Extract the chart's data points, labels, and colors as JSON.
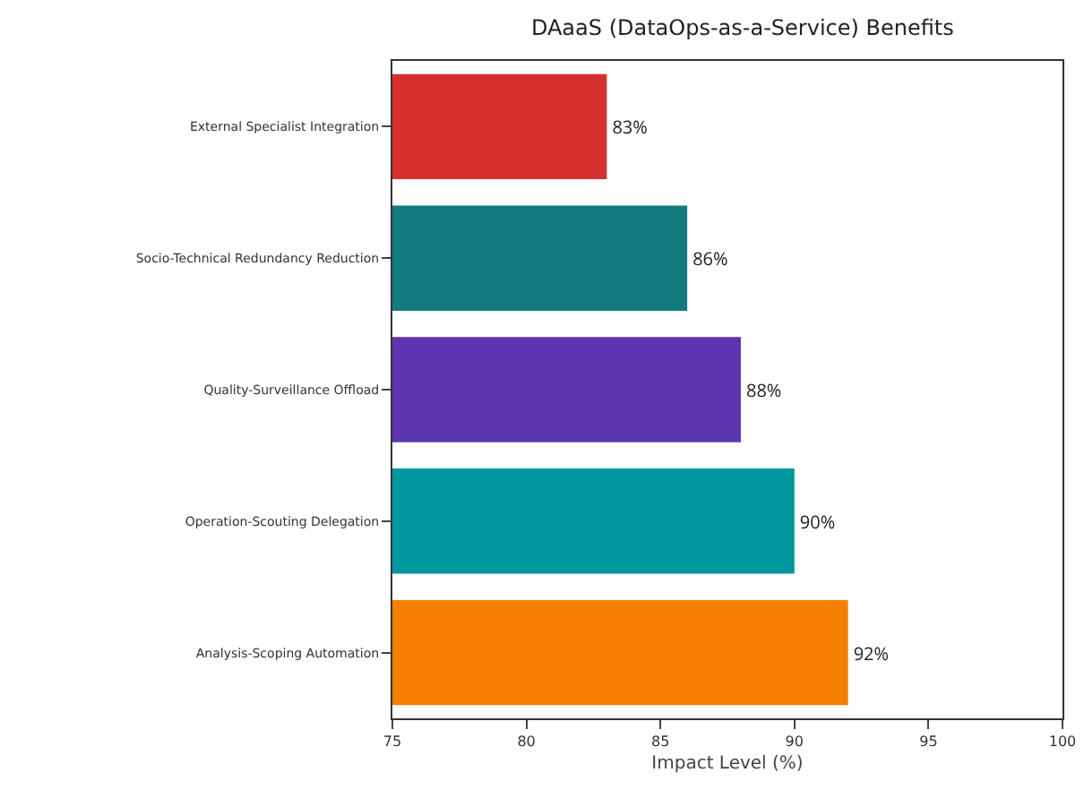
{
  "chart_data": {
    "type": "bar",
    "orientation": "horizontal",
    "title": "DAaaS (DataOps-as-a-Service) Benefits",
    "xlabel": "Impact Level (%)",
    "categories": [
      "External Specialist Integration",
      "Socio-Technical Redundancy Reduction",
      "Quality-Surveillance Offload",
      "Operation-Scouting Delegation",
      "Analysis-Scoping Automation"
    ],
    "values": [
      83,
      86,
      88,
      90,
      92
    ],
    "colors": [
      "#d62f2f",
      "#137a80",
      "#5e35b1",
      "#00979f",
      "#f77f00"
    ],
    "value_labels": [
      "83%",
      "86%",
      "88%",
      "90%",
      "92%"
    ],
    "xlim": [
      75,
      100
    ],
    "xticks": [
      75,
      80,
      85,
      90,
      95,
      100
    ],
    "grid": false,
    "legend": false
  }
}
